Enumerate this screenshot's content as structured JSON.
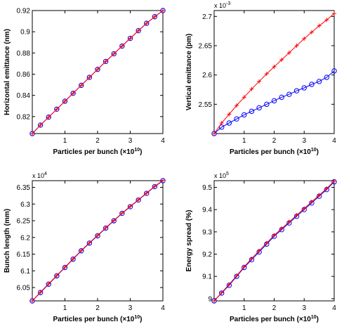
{
  "chart_data": [
    {
      "type": "line",
      "xlabel": "Particles per bunch (×10",
      "xlabel_exp": "10",
      "ylabel": "Horizontal emittance (nm)",
      "exponent_label": "",
      "xlim": [
        0,
        4
      ],
      "ylim": [
        0.804,
        0.92
      ],
      "xticks": [
        1,
        2,
        3,
        4
      ],
      "yticks": [
        0.82,
        0.84,
        0.86,
        0.88,
        0.9,
        0.92
      ],
      "ytick_labels": [
        "0.82",
        "0.84",
        "0.86",
        "0.88",
        "0.9",
        "0.92"
      ],
      "series": [
        {
          "marker": "circle",
          "color": "#0000ff",
          "x": [
            0,
            0.25,
            0.5,
            0.75,
            1,
            1.25,
            1.5,
            1.75,
            2,
            2.25,
            2.5,
            2.75,
            3,
            3.25,
            3.5,
            3.75,
            4
          ],
          "y": [
            0.804,
            0.812,
            0.8195,
            0.827,
            0.8345,
            0.842,
            0.8495,
            0.857,
            0.8645,
            0.872,
            0.8792,
            0.8865,
            0.8938,
            0.901,
            0.908,
            0.9142,
            0.92
          ]
        },
        {
          "marker": "plus",
          "color": "#ff0000",
          "x": [
            0,
            0.25,
            0.5,
            0.75,
            1,
            1.25,
            1.5,
            1.75,
            2,
            2.25,
            2.5,
            2.75,
            3,
            3.25,
            3.5,
            3.75,
            4
          ],
          "y": [
            0.804,
            0.812,
            0.8195,
            0.827,
            0.8345,
            0.842,
            0.8495,
            0.857,
            0.8645,
            0.872,
            0.8792,
            0.8865,
            0.8938,
            0.901,
            0.908,
            0.9142,
            0.92
          ]
        }
      ]
    },
    {
      "type": "line",
      "xlabel": "Particles per bunch (×10",
      "xlabel_exp": "10",
      "ylabel": "Vertical emittance (pm)",
      "exponent_label": "x 10",
      "exponent_power": "-3",
      "xlim": [
        0,
        4
      ],
      "ylim": [
        2.5,
        2.71
      ],
      "xticks": [
        1,
        2,
        3,
        4
      ],
      "yticks": [
        2.55,
        2.6,
        2.65,
        2.7
      ],
      "ytick_labels": [
        "2.55",
        "2.6",
        "2.65",
        "2.7"
      ],
      "series": [
        {
          "marker": "circle",
          "color": "#0000ff",
          "x": [
            0,
            0.25,
            0.5,
            0.75,
            1,
            1.25,
            1.5,
            1.75,
            2,
            2.25,
            2.5,
            2.75,
            3,
            3.25,
            3.5,
            3.75,
            4
          ],
          "y": [
            2.5,
            2.511,
            2.518,
            2.525,
            2.532,
            2.538,
            2.544,
            2.55,
            2.556,
            2.562,
            2.567,
            2.573,
            2.578,
            2.584,
            2.589,
            2.596,
            2.607
          ]
        },
        {
          "marker": "plus",
          "color": "#ff0000",
          "x": [
            0,
            0.25,
            0.5,
            0.75,
            1,
            1.25,
            1.5,
            1.75,
            2,
            2.25,
            2.5,
            2.75,
            3,
            3.25,
            3.5,
            3.75,
            4
          ],
          "y": [
            2.5,
            2.518,
            2.533,
            2.548,
            2.562,
            2.576,
            2.589,
            2.602,
            2.614,
            2.626,
            2.638,
            2.65,
            2.662,
            2.673,
            2.684,
            2.694,
            2.705
          ]
        }
      ]
    },
    {
      "type": "line",
      "xlabel": "Particles per bunch (×10",
      "xlabel_exp": "10",
      "ylabel": "Bunch length (mm)",
      "exponent_label": "x 10",
      "exponent_power": "4",
      "xlim": [
        0,
        4
      ],
      "ylim": [
        6.01,
        6.37
      ],
      "xticks": [
        1,
        2,
        3,
        4
      ],
      "yticks": [
        6.05,
        6.1,
        6.15,
        6.2,
        6.25,
        6.3,
        6.35
      ],
      "ytick_labels": [
        "6.05",
        "6.1",
        "6.15",
        "6.2",
        "6.25",
        "6.3",
        "6.35"
      ],
      "series": [
        {
          "marker": "circle",
          "color": "#0000ff",
          "x": [
            0,
            0.25,
            0.5,
            0.75,
            1,
            1.25,
            1.5,
            1.75,
            2,
            2.25,
            2.5,
            2.75,
            3,
            3.25,
            3.5,
            3.75,
            4
          ],
          "y": [
            6.01,
            6.035,
            6.06,
            6.085,
            6.11,
            6.135,
            6.16,
            6.183,
            6.205,
            6.228,
            6.25,
            6.272,
            6.292,
            6.312,
            6.332,
            6.352,
            6.37
          ]
        },
        {
          "marker": "plus",
          "color": "#ff0000",
          "x": [
            0,
            0.25,
            0.5,
            0.75,
            1,
            1.25,
            1.5,
            1.75,
            2,
            2.25,
            2.5,
            2.75,
            3,
            3.25,
            3.5,
            3.75,
            4
          ],
          "y": [
            6.01,
            6.036,
            6.061,
            6.086,
            6.111,
            6.136,
            6.161,
            6.184,
            6.206,
            6.229,
            6.251,
            6.273,
            6.293,
            6.313,
            6.333,
            6.353,
            6.371
          ]
        }
      ]
    },
    {
      "type": "line",
      "xlabel": "Particles per bunch (×10",
      "xlabel_exp": "10",
      "ylabel": "Energy spread (%)",
      "exponent_label": "x 10",
      "exponent_power": "5",
      "xlim": [
        0,
        4
      ],
      "ylim": [
        8.99,
        9.53
      ],
      "xticks": [
        1,
        2,
        3,
        4
      ],
      "yticks": [
        9,
        9.1,
        9.2,
        9.3,
        9.4,
        9.5
      ],
      "ytick_labels": [
        "9",
        "9.1",
        "9.2",
        "9.3",
        "9.4",
        "9.5"
      ],
      "series": [
        {
          "marker": "circle",
          "color": "#0000ff",
          "x": [
            0,
            0.25,
            0.5,
            0.75,
            1,
            1.25,
            1.5,
            1.75,
            2,
            2.25,
            2.5,
            2.75,
            3,
            3.25,
            3.5,
            3.75,
            4
          ],
          "y": [
            8.99,
            9.025,
            9.06,
            9.1,
            9.14,
            9.175,
            9.21,
            9.245,
            9.28,
            9.31,
            9.34,
            9.37,
            9.4,
            9.43,
            9.46,
            9.49,
            9.525
          ]
        },
        {
          "marker": "plus",
          "color": "#ff0000",
          "x": [
            0,
            0.25,
            0.5,
            0.75,
            1,
            1.25,
            1.5,
            1.75,
            2,
            2.25,
            2.5,
            2.75,
            3,
            3.25,
            3.5,
            3.75,
            4
          ],
          "y": [
            8.99,
            9.027,
            9.064,
            9.103,
            9.143,
            9.18,
            9.215,
            9.25,
            9.285,
            9.315,
            9.345,
            9.375,
            9.405,
            9.435,
            9.465,
            9.495,
            9.528
          ]
        }
      ]
    }
  ]
}
